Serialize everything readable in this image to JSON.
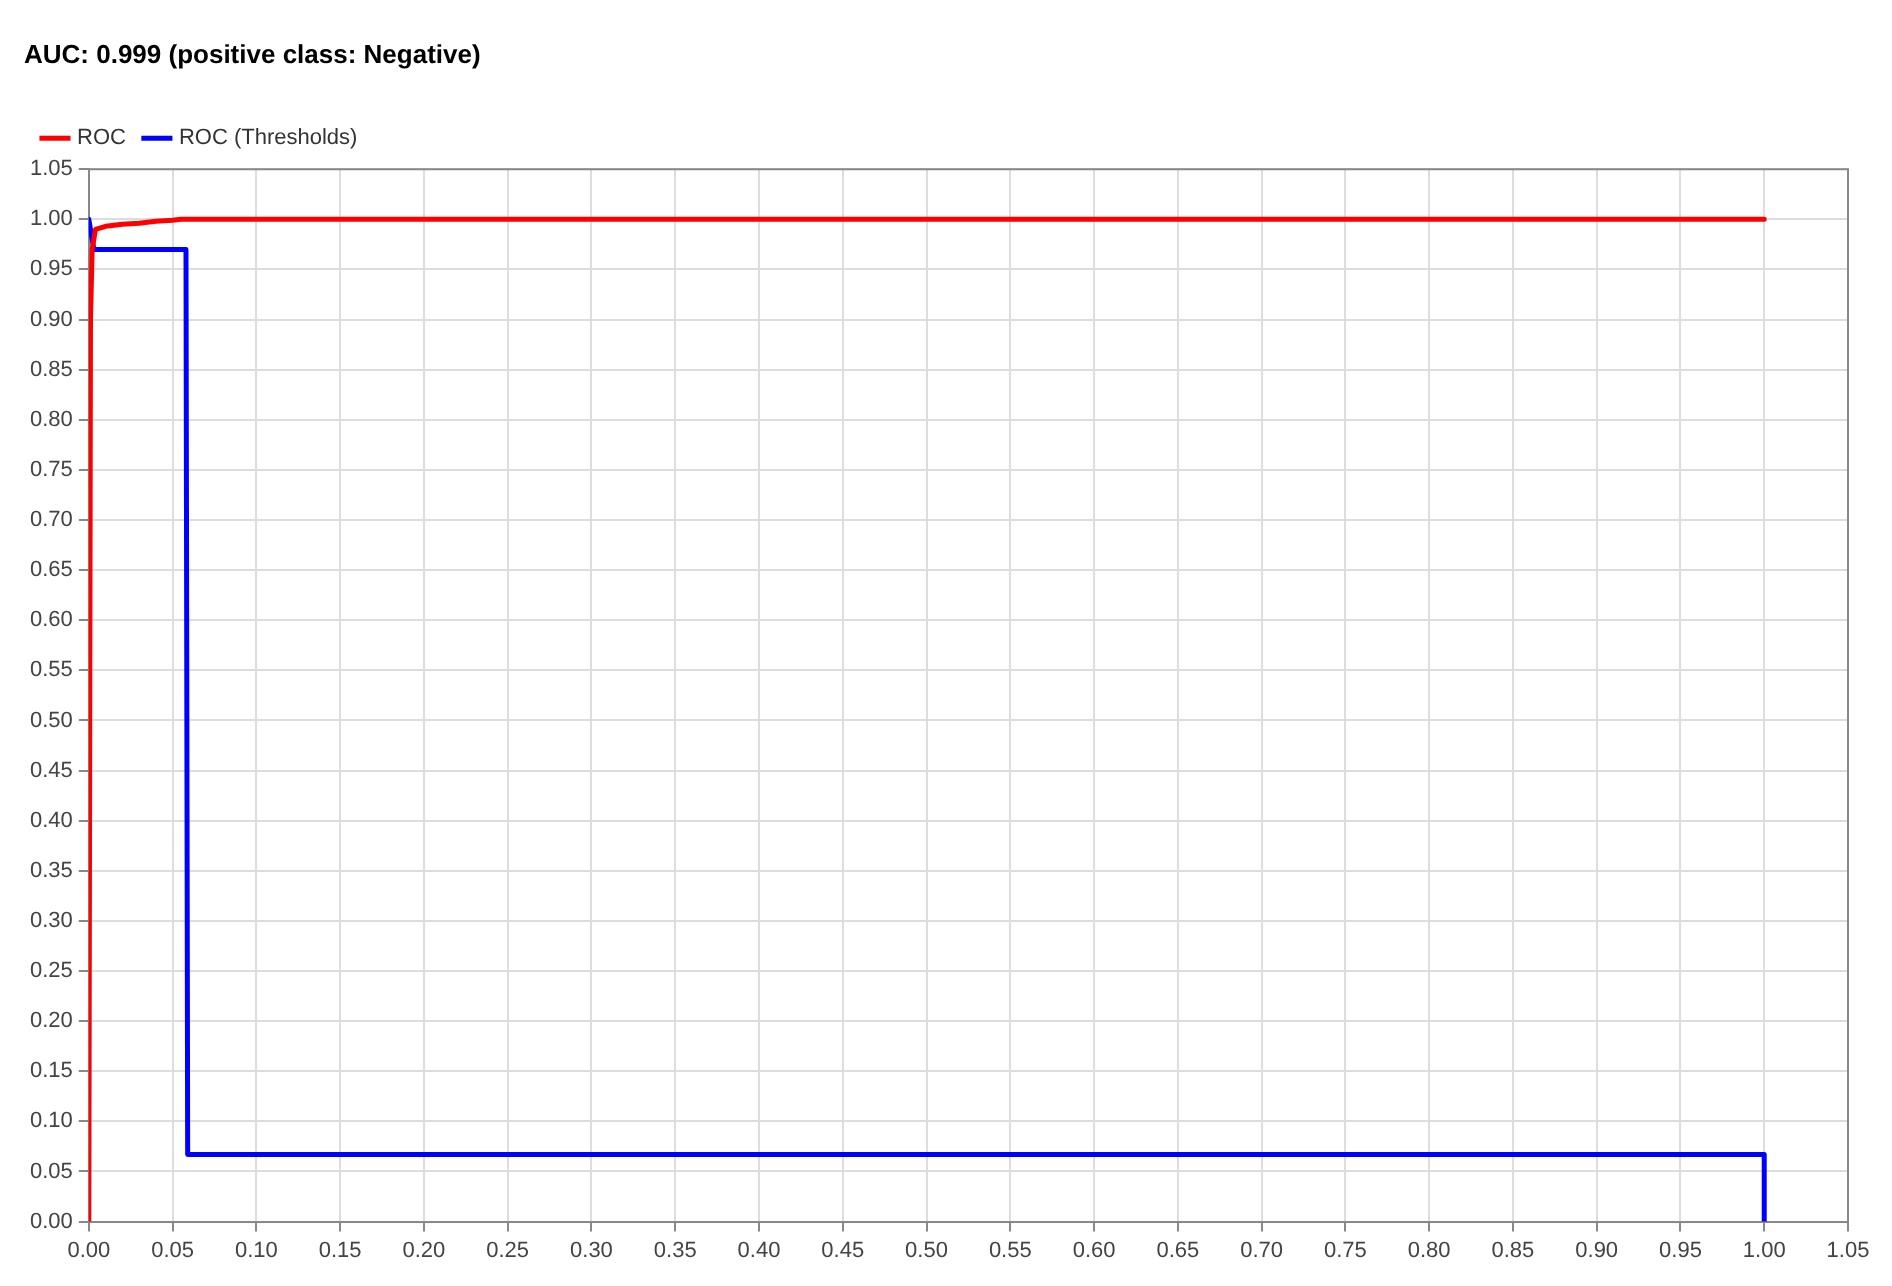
{
  "chart_data": {
    "type": "line",
    "title": "AUC: 0.999 (positive class: Negative)",
    "series": [
      {
        "name": "ROC",
        "color": "#ff0000",
        "x": [
          0,
          0.001,
          0.002,
          0.004,
          0.01,
          0.02,
          0.03,
          0.04,
          0.05,
          0.055,
          1.0
        ],
        "values": [
          0,
          0.9,
          0.97,
          0.99,
          0.993,
          0.995,
          0.996,
          0.998,
          0.999,
          1.0,
          1.0
        ]
      },
      {
        "name": "ROC (Thresholds)",
        "color": "#0000ff",
        "x": [
          0,
          0.003,
          0.058,
          0.059,
          1.0,
          1.0
        ],
        "values": [
          1.0,
          0.97,
          0.97,
          0.067,
          0.067,
          0
        ]
      }
    ],
    "xlim": [
      0,
      1.05
    ],
    "ylim": [
      0,
      1.05
    ],
    "xticks": [
      {
        "value": 0,
        "label": "0.00"
      },
      {
        "value": 0.05,
        "label": "0.05"
      },
      {
        "value": 0.1,
        "label": "0.10"
      },
      {
        "value": 0.15,
        "label": "0.15"
      },
      {
        "value": 0.2,
        "label": "0.20"
      },
      {
        "value": 0.25,
        "label": "0.25"
      },
      {
        "value": 0.3,
        "label": "0.30"
      },
      {
        "value": 0.35,
        "label": "0.35"
      },
      {
        "value": 0.4,
        "label": "0.40"
      },
      {
        "value": 0.45,
        "label": "0.45"
      },
      {
        "value": 0.5,
        "label": "0.50"
      },
      {
        "value": 0.55,
        "label": "0.55"
      },
      {
        "value": 0.6,
        "label": "0.60"
      },
      {
        "value": 0.65,
        "label": "0.65"
      },
      {
        "value": 0.7,
        "label": "0.70"
      },
      {
        "value": 0.75,
        "label": "0.75"
      },
      {
        "value": 0.8,
        "label": "0.80"
      },
      {
        "value": 0.85,
        "label": "0.85"
      },
      {
        "value": 0.9,
        "label": "0.90"
      },
      {
        "value": 0.95,
        "label": "0.95"
      },
      {
        "value": 1.0,
        "label": "1.00"
      },
      {
        "value": 1.05,
        "label": "1.05"
      }
    ],
    "yticks": [
      {
        "value": 0,
        "label": "0.00"
      },
      {
        "value": 0.05,
        "label": "0.05"
      },
      {
        "value": 0.1,
        "label": "0.10"
      },
      {
        "value": 0.15,
        "label": "0.15"
      },
      {
        "value": 0.2,
        "label": "0.20"
      },
      {
        "value": 0.25,
        "label": "0.25"
      },
      {
        "value": 0.3,
        "label": "0.30"
      },
      {
        "value": 0.35,
        "label": "0.35"
      },
      {
        "value": 0.4,
        "label": "0.40"
      },
      {
        "value": 0.45,
        "label": "0.45"
      },
      {
        "value": 0.5,
        "label": "0.50"
      },
      {
        "value": 0.55,
        "label": "0.55"
      },
      {
        "value": 0.6,
        "label": "0.60"
      },
      {
        "value": 0.65,
        "label": "0.65"
      },
      {
        "value": 0.7,
        "label": "0.70"
      },
      {
        "value": 0.75,
        "label": "0.75"
      },
      {
        "value": 0.8,
        "label": "0.80"
      },
      {
        "value": 0.85,
        "label": "0.85"
      },
      {
        "value": 0.9,
        "label": "0.90"
      },
      {
        "value": 0.95,
        "label": "0.95"
      },
      {
        "value": 1.0,
        "label": "1.00"
      },
      {
        "value": 1.05,
        "label": "1.05"
      }
    ],
    "grid": true,
    "legend": "top left",
    "marker": "none",
    "line_style": "solid"
  }
}
